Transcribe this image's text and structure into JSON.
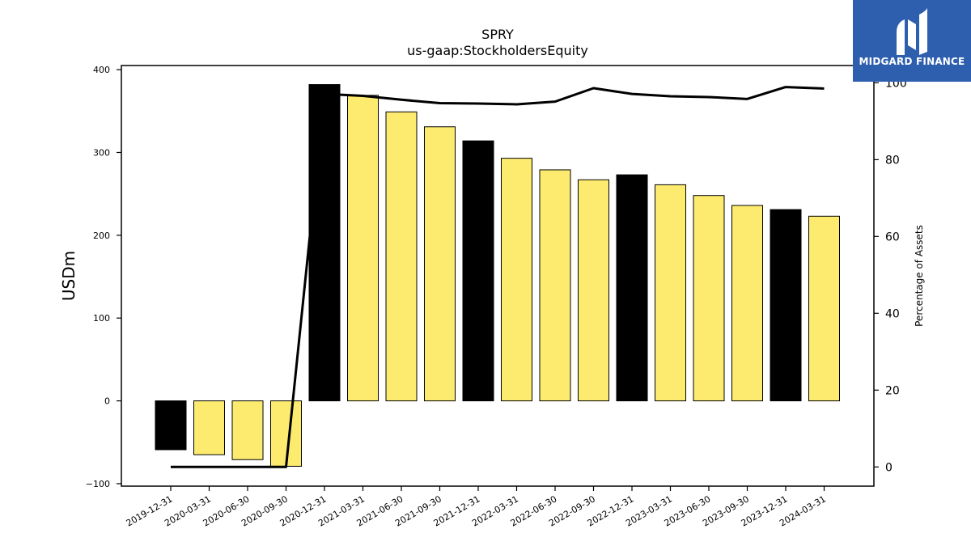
{
  "chart_data": {
    "type": "bar",
    "title": "SPRY",
    "subtitle": "us-gaap:StockholdersEquity",
    "ylabel": "USDm",
    "y2label": "Percentage of Assets",
    "categories": [
      "2019-12-31",
      "2020-03-31",
      "2020-06-30",
      "2020-09-30",
      "2020-12-31",
      "2021-03-31",
      "2021-06-30",
      "2021-09-30",
      "2021-12-31",
      "2022-03-31",
      "2022-06-30",
      "2022-09-30",
      "2022-12-31",
      "2023-03-31",
      "2023-06-30",
      "2023-09-30",
      "2023-12-31",
      "2024-03-31"
    ],
    "values": [
      -59,
      -65,
      -71,
      -79,
      382,
      369,
      349,
      331,
      314,
      293,
      279,
      267,
      273,
      261,
      248,
      236,
      231,
      223
    ],
    "bar_colors": [
      "#000000",
      "#fdeb6f",
      "#fdeb6f",
      "#fdeb6f",
      "#000000",
      "#fdeb6f",
      "#fdeb6f",
      "#fdeb6f",
      "#000000",
      "#fdeb6f",
      "#fdeb6f",
      "#fdeb6f",
      "#000000",
      "#fdeb6f",
      "#fdeb6f",
      "#fdeb6f",
      "#000000",
      "#fdeb6f"
    ],
    "pct_of_assets": [
      0,
      0,
      0,
      0,
      97.1,
      96.6,
      95.6,
      94.7,
      94.6,
      94.4,
      95.1,
      98.6,
      97.1,
      96.5,
      96.3,
      95.8,
      98.9,
      98.5
    ],
    "ylim": [
      -103,
      405
    ],
    "y2lim": [
      -5,
      104.5
    ],
    "yticks": [
      -100,
      0,
      100,
      200,
      300,
      400
    ],
    "y2ticks": [
      0,
      20,
      40,
      60,
      80,
      100
    ],
    "grid": false,
    "legend": "none"
  },
  "logo": {
    "text": "MIDGARD FINANCE"
  },
  "colors": {
    "logo_bg": "#2d5fae",
    "yellow": "#fdeb6f",
    "black": "#000000"
  }
}
